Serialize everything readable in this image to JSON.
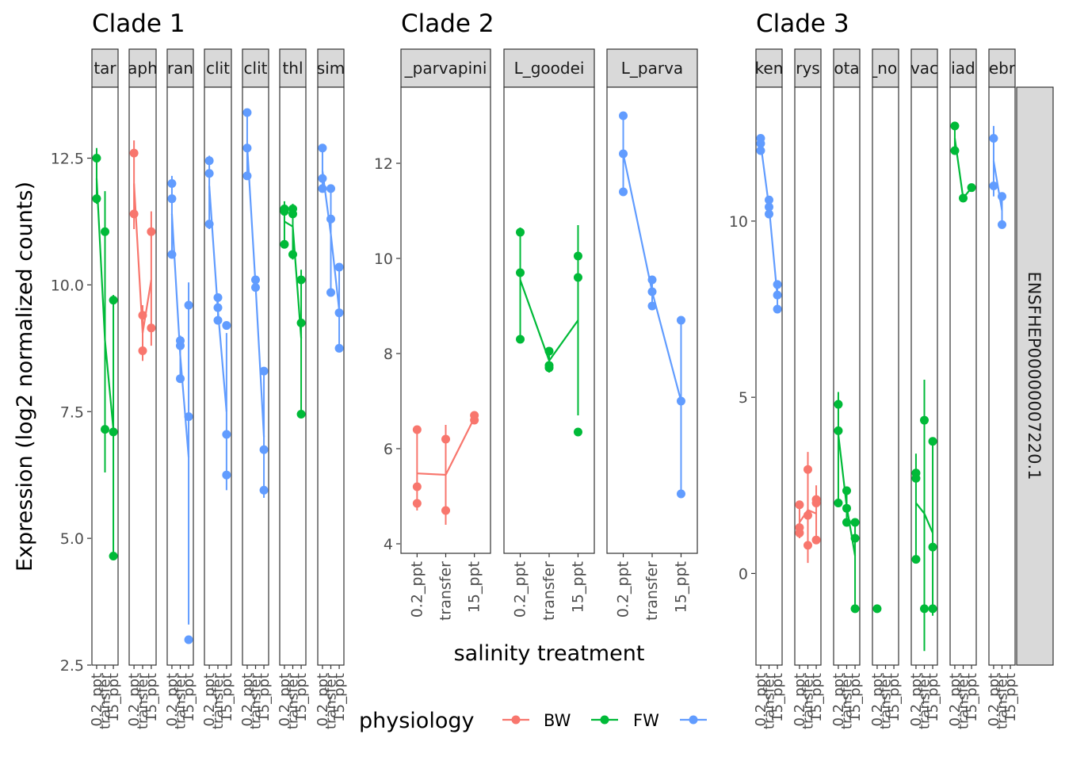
{
  "chart_data": {
    "type": "line",
    "y_axis_title": "Expression (log2 normalized counts)",
    "x_axis_title": "salinity treatment",
    "x_categories": [
      "0.2_ppt",
      "transfer",
      "15_ppt"
    ],
    "side_strip_label": "ENSFHEP00000007220.1",
    "legend": {
      "title": "physiology",
      "entries": [
        {
          "label": "BW",
          "color": "#F8766D"
        },
        {
          "label": "FW",
          "color": "#00BA38"
        },
        {
          "label": "",
          "color": "#619CFF"
        }
      ]
    },
    "colors": {
      "BW": "#F8766D",
      "FW": "#00BA38",
      "SW": "#619CFF"
    },
    "clades": [
      {
        "title": "Clade 1",
        "ylim": [
          2.5,
          13.9
        ],
        "yticks": [
          2.5,
          5.0,
          7.5,
          10.0,
          12.5
        ],
        "ytick_labels": [
          "2.5",
          "5.0",
          "7.5",
          "10.0",
          "12.5"
        ],
        "panels": [
          {
            "label": "tar",
            "phys": "FW",
            "points": [
              [
                0,
                12.5
              ],
              [
                0,
                11.7
              ],
              [
                1,
                11.05
              ],
              [
                1,
                7.15
              ],
              [
                2,
                9.7
              ],
              [
                2,
                7.1
              ],
              [
                2,
                4.65
              ]
            ],
            "means": [
              12.1,
              8.9,
              7.15
            ],
            "errs": [
              [
                11.6,
                12.7
              ],
              [
                6.3,
                11.85
              ],
              [
                4.6,
                9.8
              ]
            ]
          },
          {
            "label": "aph",
            "phys": "BW",
            "points": [
              [
                0,
                12.6
              ],
              [
                0,
                11.4
              ],
              [
                1,
                9.4
              ],
              [
                1,
                8.7
              ],
              [
                2,
                11.05
              ],
              [
                2,
                9.15
              ]
            ],
            "means": [
              12.0,
              9.05,
              10.1
            ],
            "errs": [
              [
                11.1,
                12.85
              ],
              [
                8.5,
                9.6
              ],
              [
                8.8,
                11.45
              ]
            ]
          },
          {
            "label": "ran",
            "phys": "SW",
            "points": [
              [
                0,
                12.0
              ],
              [
                0,
                11.7
              ],
              [
                0,
                10.6
              ],
              [
                1,
                8.9
              ],
              [
                1,
                8.8
              ],
              [
                1,
                8.15
              ],
              [
                2,
                9.6
              ],
              [
                2,
                7.4
              ],
              [
                2,
                3.0
              ]
            ],
            "means": [
              11.4,
              8.6,
              6.6
            ],
            "errs": [
              [
                10.6,
                12.15
              ],
              [
                8.1,
                9.0
              ],
              [
                3.3,
                10.05
              ]
            ]
          },
          {
            "label": "clit",
            "phys": "SW",
            "points": [
              [
                0,
                12.45
              ],
              [
                0,
                12.2
              ],
              [
                0,
                11.2
              ],
              [
                1,
                9.75
              ],
              [
                1,
                9.55
              ],
              [
                1,
                9.3
              ],
              [
                2,
                9.2
              ],
              [
                2,
                7.05
              ],
              [
                2,
                6.25
              ]
            ],
            "means": [
              11.95,
              9.5,
              7.5
            ],
            "errs": [
              [
                11.1,
                12.55
              ],
              [
                9.3,
                9.75
              ],
              [
                5.95,
                9.05
              ]
            ]
          },
          {
            "label": "clit",
            "phys": "SW",
            "points": [
              [
                0,
                13.4
              ],
              [
                0,
                12.7
              ],
              [
                0,
                12.15
              ],
              [
                1,
                10.1
              ],
              [
                1,
                9.95
              ],
              [
                2,
                8.3
              ],
              [
                2,
                6.75
              ],
              [
                2,
                5.95
              ]
            ],
            "means": [
              12.75,
              10.0,
              7.0
            ],
            "errs": [
              [
                12.1,
                13.45
              ],
              [
                9.9,
                10.15
              ],
              [
                5.8,
                8.35
              ]
            ]
          },
          {
            "label": "thl",
            "phys": "FW",
            "points": [
              [
                0,
                11.5
              ],
              [
                0,
                11.45
              ],
              [
                0,
                10.8
              ],
              [
                1,
                11.5
              ],
              [
                1,
                11.4
              ],
              [
                1,
                10.6
              ],
              [
                2,
                10.1
              ],
              [
                2,
                9.25
              ],
              [
                2,
                7.45
              ]
            ],
            "means": [
              11.25,
              11.15,
              8.95
            ],
            "errs": [
              [
                10.8,
                11.65
              ],
              [
                10.5,
                11.6
              ],
              [
                7.5,
                10.3
              ]
            ]
          },
          {
            "label": "sim",
            "phys": "SW",
            "points": [
              [
                0,
                12.7
              ],
              [
                0,
                12.1
              ],
              [
                0,
                11.9
              ],
              [
                1,
                11.9
              ],
              [
                1,
                11.3
              ],
              [
                1,
                9.85
              ],
              [
                2,
                10.35
              ],
              [
                2,
                9.45
              ],
              [
                2,
                8.75
              ]
            ],
            "means": [
              12.25,
              11.0,
              9.5
            ],
            "errs": [
              [
                11.85,
                12.75
              ],
              [
                9.8,
                11.95
              ],
              [
                8.7,
                10.4
              ]
            ]
          }
        ]
      },
      {
        "title": "Clade 2",
        "ylim": [
          3.8,
          13.6
        ],
        "yticks": [
          4,
          6,
          8,
          10,
          12
        ],
        "ytick_labels": [
          "4",
          "6",
          "8",
          "10",
          "12"
        ],
        "panels": [
          {
            "label": "_parvapini",
            "phys": "BW",
            "points": [
              [
                0,
                6.4
              ],
              [
                0,
                5.2
              ],
              [
                0,
                4.85
              ],
              [
                1,
                6.2
              ],
              [
                1,
                4.7
              ],
              [
                2,
                6.7
              ],
              [
                2,
                6.6
              ]
            ],
            "means": [
              5.48,
              5.45,
              6.65
            ],
            "errs": [
              [
                4.7,
                6.4
              ],
              [
                4.4,
                6.5
              ],
              [
                6.55,
                6.75
              ]
            ]
          },
          {
            "label": "L_goodei",
            "phys": "FW",
            "points": [
              [
                0,
                10.55
              ],
              [
                0,
                9.7
              ],
              [
                0,
                8.3
              ],
              [
                1,
                8.05
              ],
              [
                1,
                7.75
              ],
              [
                1,
                7.7
              ],
              [
                2,
                10.05
              ],
              [
                2,
                9.6
              ],
              [
                2,
                6.35
              ]
            ],
            "means": [
              9.55,
              7.85,
              8.7
            ],
            "errs": [
              [
                8.25,
                10.65
              ],
              [
                7.6,
                8.1
              ],
              [
                6.7,
                10.7
              ]
            ]
          },
          {
            "label": "L_parva",
            "phys": "SW",
            "points": [
              [
                0,
                13.0
              ],
              [
                0,
                12.2
              ],
              [
                0,
                11.4
              ],
              [
                1,
                9.55
              ],
              [
                1,
                9.3
              ],
              [
                1,
                9.0
              ],
              [
                2,
                8.7
              ],
              [
                2,
                7.0
              ],
              [
                2,
                5.05
              ]
            ],
            "means": [
              12.2,
              9.3,
              7.0
            ],
            "errs": [
              [
                11.35,
                13.05
              ],
              [
                8.95,
                9.6
              ],
              [
                5.05,
                8.75
              ]
            ]
          }
        ]
      },
      {
        "title": "Clade 3",
        "ylim": [
          -2.6,
          13.8
        ],
        "yticks": [
          0,
          5,
          10
        ],
        "ytick_labels": [
          "0",
          "5",
          "10"
        ],
        "panels": [
          {
            "label": "ken",
            "phys": "SW",
            "points": [
              [
                0,
                12.35
              ],
              [
                0,
                12.2
              ],
              [
                0,
                12.0
              ],
              [
                1,
                10.6
              ],
              [
                1,
                10.4
              ],
              [
                1,
                10.2
              ],
              [
                2,
                8.2
              ],
              [
                2,
                7.9
              ],
              [
                2,
                7.5
              ]
            ],
            "means": [
              12.2,
              10.4,
              7.85
            ],
            "errs": [
              [
                11.95,
                12.45
              ],
              [
                10.1,
                10.7
              ],
              [
                7.45,
                8.3
              ]
            ]
          },
          {
            "label": "rys",
            "phys": "BW",
            "points": [
              [
                0,
                1.95
              ],
              [
                0,
                1.3
              ],
              [
                0,
                1.15
              ],
              [
                1,
                2.95
              ],
              [
                1,
                1.65
              ],
              [
                1,
                0.8
              ],
              [
                2,
                2.1
              ],
              [
                2,
                2.0
              ],
              [
                2,
                0.95
              ]
            ],
            "means": [
              1.45,
              1.8,
              1.7
            ],
            "errs": [
              [
                1.0,
                2.0
              ],
              [
                0.3,
                3.45
              ],
              [
                0.85,
                2.5
              ]
            ]
          },
          {
            "label": "ota",
            "phys": "FW",
            "points": [
              [
                0,
                4.8
              ],
              [
                0,
                4.05
              ],
              [
                0,
                2.0
              ],
              [
                1,
                2.35
              ],
              [
                1,
                1.85
              ],
              [
                1,
                1.45
              ],
              [
                2,
                1.45
              ],
              [
                2,
                1.0
              ],
              [
                2,
                -1.0
              ]
            ],
            "means": [
              3.95,
              1.9,
              0.5
            ],
            "errs": [
              [
                1.9,
                5.15
              ],
              [
                1.35,
                2.45
              ],
              [
                -1.1,
                1.55
              ]
            ]
          },
          {
            "label": "_nol",
            "phys": "FW",
            "points": [
              [
                0,
                -1.0
              ]
            ],
            "means": [
              -1.0,
              null,
              null
            ],
            "errs": [
              [
                -1.0,
                -1.0
              ],
              null,
              null
            ]
          },
          {
            "label": "vac",
            "phys": "FW",
            "points": [
              [
                0,
                2.85
              ],
              [
                0,
                2.7
              ],
              [
                0,
                0.4
              ],
              [
                1,
                4.35
              ],
              [
                1,
                -1.0
              ],
              [
                2,
                3.75
              ],
              [
                2,
                0.75
              ],
              [
                2,
                -1.0
              ]
            ],
            "means": [
              2.0,
              1.7,
              1.15
            ],
            "errs": [
              [
                0.3,
                3.4
              ],
              [
                -2.2,
                5.5
              ],
              [
                -1.2,
                3.8
              ]
            ]
          },
          {
            "label": "iad",
            "phys": "FW",
            "points": [
              [
                0,
                12.7
              ],
              [
                0,
                12.0
              ],
              [
                1,
                10.65
              ],
              [
                2,
                10.95
              ]
            ],
            "means": [
              12.35,
              10.65,
              10.95
            ],
            "errs": [
              [
                11.95,
                12.8
              ],
              null,
              null
            ]
          },
          {
            "label": "ebr",
            "phys": "SW",
            "points": [
              [
                0,
                12.35
              ],
              [
                0,
                11.0
              ],
              [
                1,
                10.7
              ],
              [
                1,
                9.9
              ]
            ],
            "means": [
              11.7,
              10.3,
              null
            ],
            "errs": [
              [
                10.7,
                12.7
              ],
              [
                9.8,
                10.75
              ],
              null
            ]
          }
        ]
      }
    ]
  }
}
